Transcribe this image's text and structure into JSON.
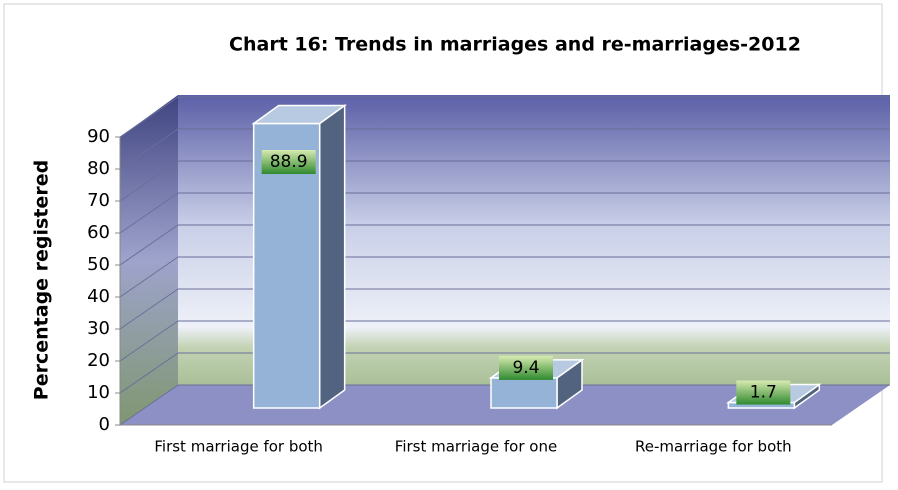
{
  "chart_data": {
    "type": "bar",
    "title": "Chart 16: Trends in marriages and re-marriages-2012",
    "y_label": "Percentage registered",
    "categories": [
      "First marriage for both",
      "First marriage for one",
      "Re-marriage for both"
    ],
    "values": [
      88.9,
      9.4,
      1.7
    ],
    "color": "#95b3d7",
    "ylim": [
      0,
      90
    ],
    "yticks": [
      0,
      10,
      20,
      30,
      40,
      50,
      60,
      70,
      80,
      90
    ],
    "grid": true
  }
}
